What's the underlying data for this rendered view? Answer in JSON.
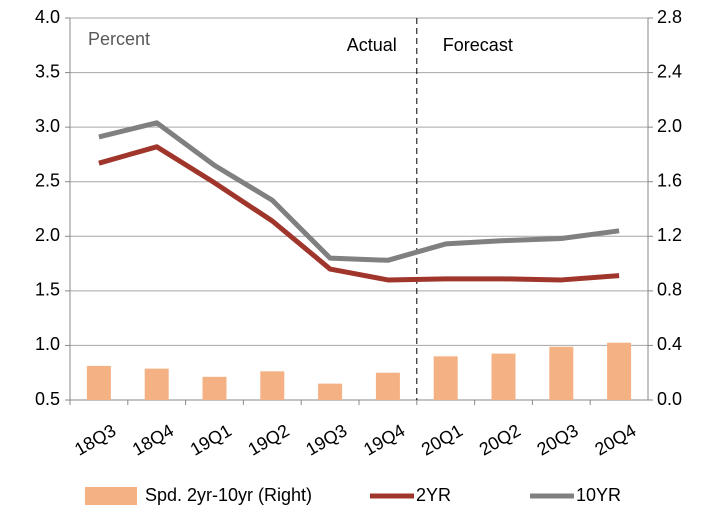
{
  "chart_data": {
    "type": "bar-line",
    "categories": [
      "18Q3",
      "18Q4",
      "19Q1",
      "19Q2",
      "19Q3",
      "19Q4",
      "20Q1",
      "20Q2",
      "20Q3",
      "20Q4"
    ],
    "annotations": [
      "Percent",
      "Actual",
      "Forecast"
    ],
    "series": [
      {
        "name": "Spd. 2yr-10yr (Right)",
        "type": "bar",
        "axis": "y2",
        "color": "#f4b183",
        "values": [
          0.25,
          0.23,
          0.17,
          0.21,
          0.12,
          0.2,
          0.32,
          0.34,
          0.39,
          0.42
        ]
      },
      {
        "name": "2YR",
        "type": "line",
        "color": "#a0352b",
        "values": [
          2.67,
          2.82,
          2.49,
          2.14,
          1.7,
          1.6,
          1.61,
          1.61,
          1.6,
          1.64
        ]
      },
      {
        "name": "10YR",
        "type": "line",
        "color": "#808080",
        "values": [
          2.91,
          3.04,
          2.65,
          2.33,
          1.8,
          1.78,
          1.93,
          1.96,
          1.98,
          2.05
        ]
      }
    ],
    "ylim": [
      0.5,
      4.0
    ],
    "yticks": [
      0.5,
      {
        "value": 1.0,
        "label": "1.0"
      },
      1.5,
      {
        "value": 2.0,
        "label": "2.0"
      },
      2.5,
      {
        "value": 3.0,
        "label": "3.0"
      },
      3.5,
      {
        "value": 4.0,
        "label": "4.0"
      }
    ],
    "y2lim": [
      0.0,
      2.8
    ],
    "y2ticks": [
      {
        "value": 0.0,
        "label": "0.0"
      },
      0.4,
      0.8,
      1.2,
      1.6,
      {
        "value": 2.0,
        "label": "2.0"
      },
      2.4,
      2.8
    ],
    "grid": true
  }
}
